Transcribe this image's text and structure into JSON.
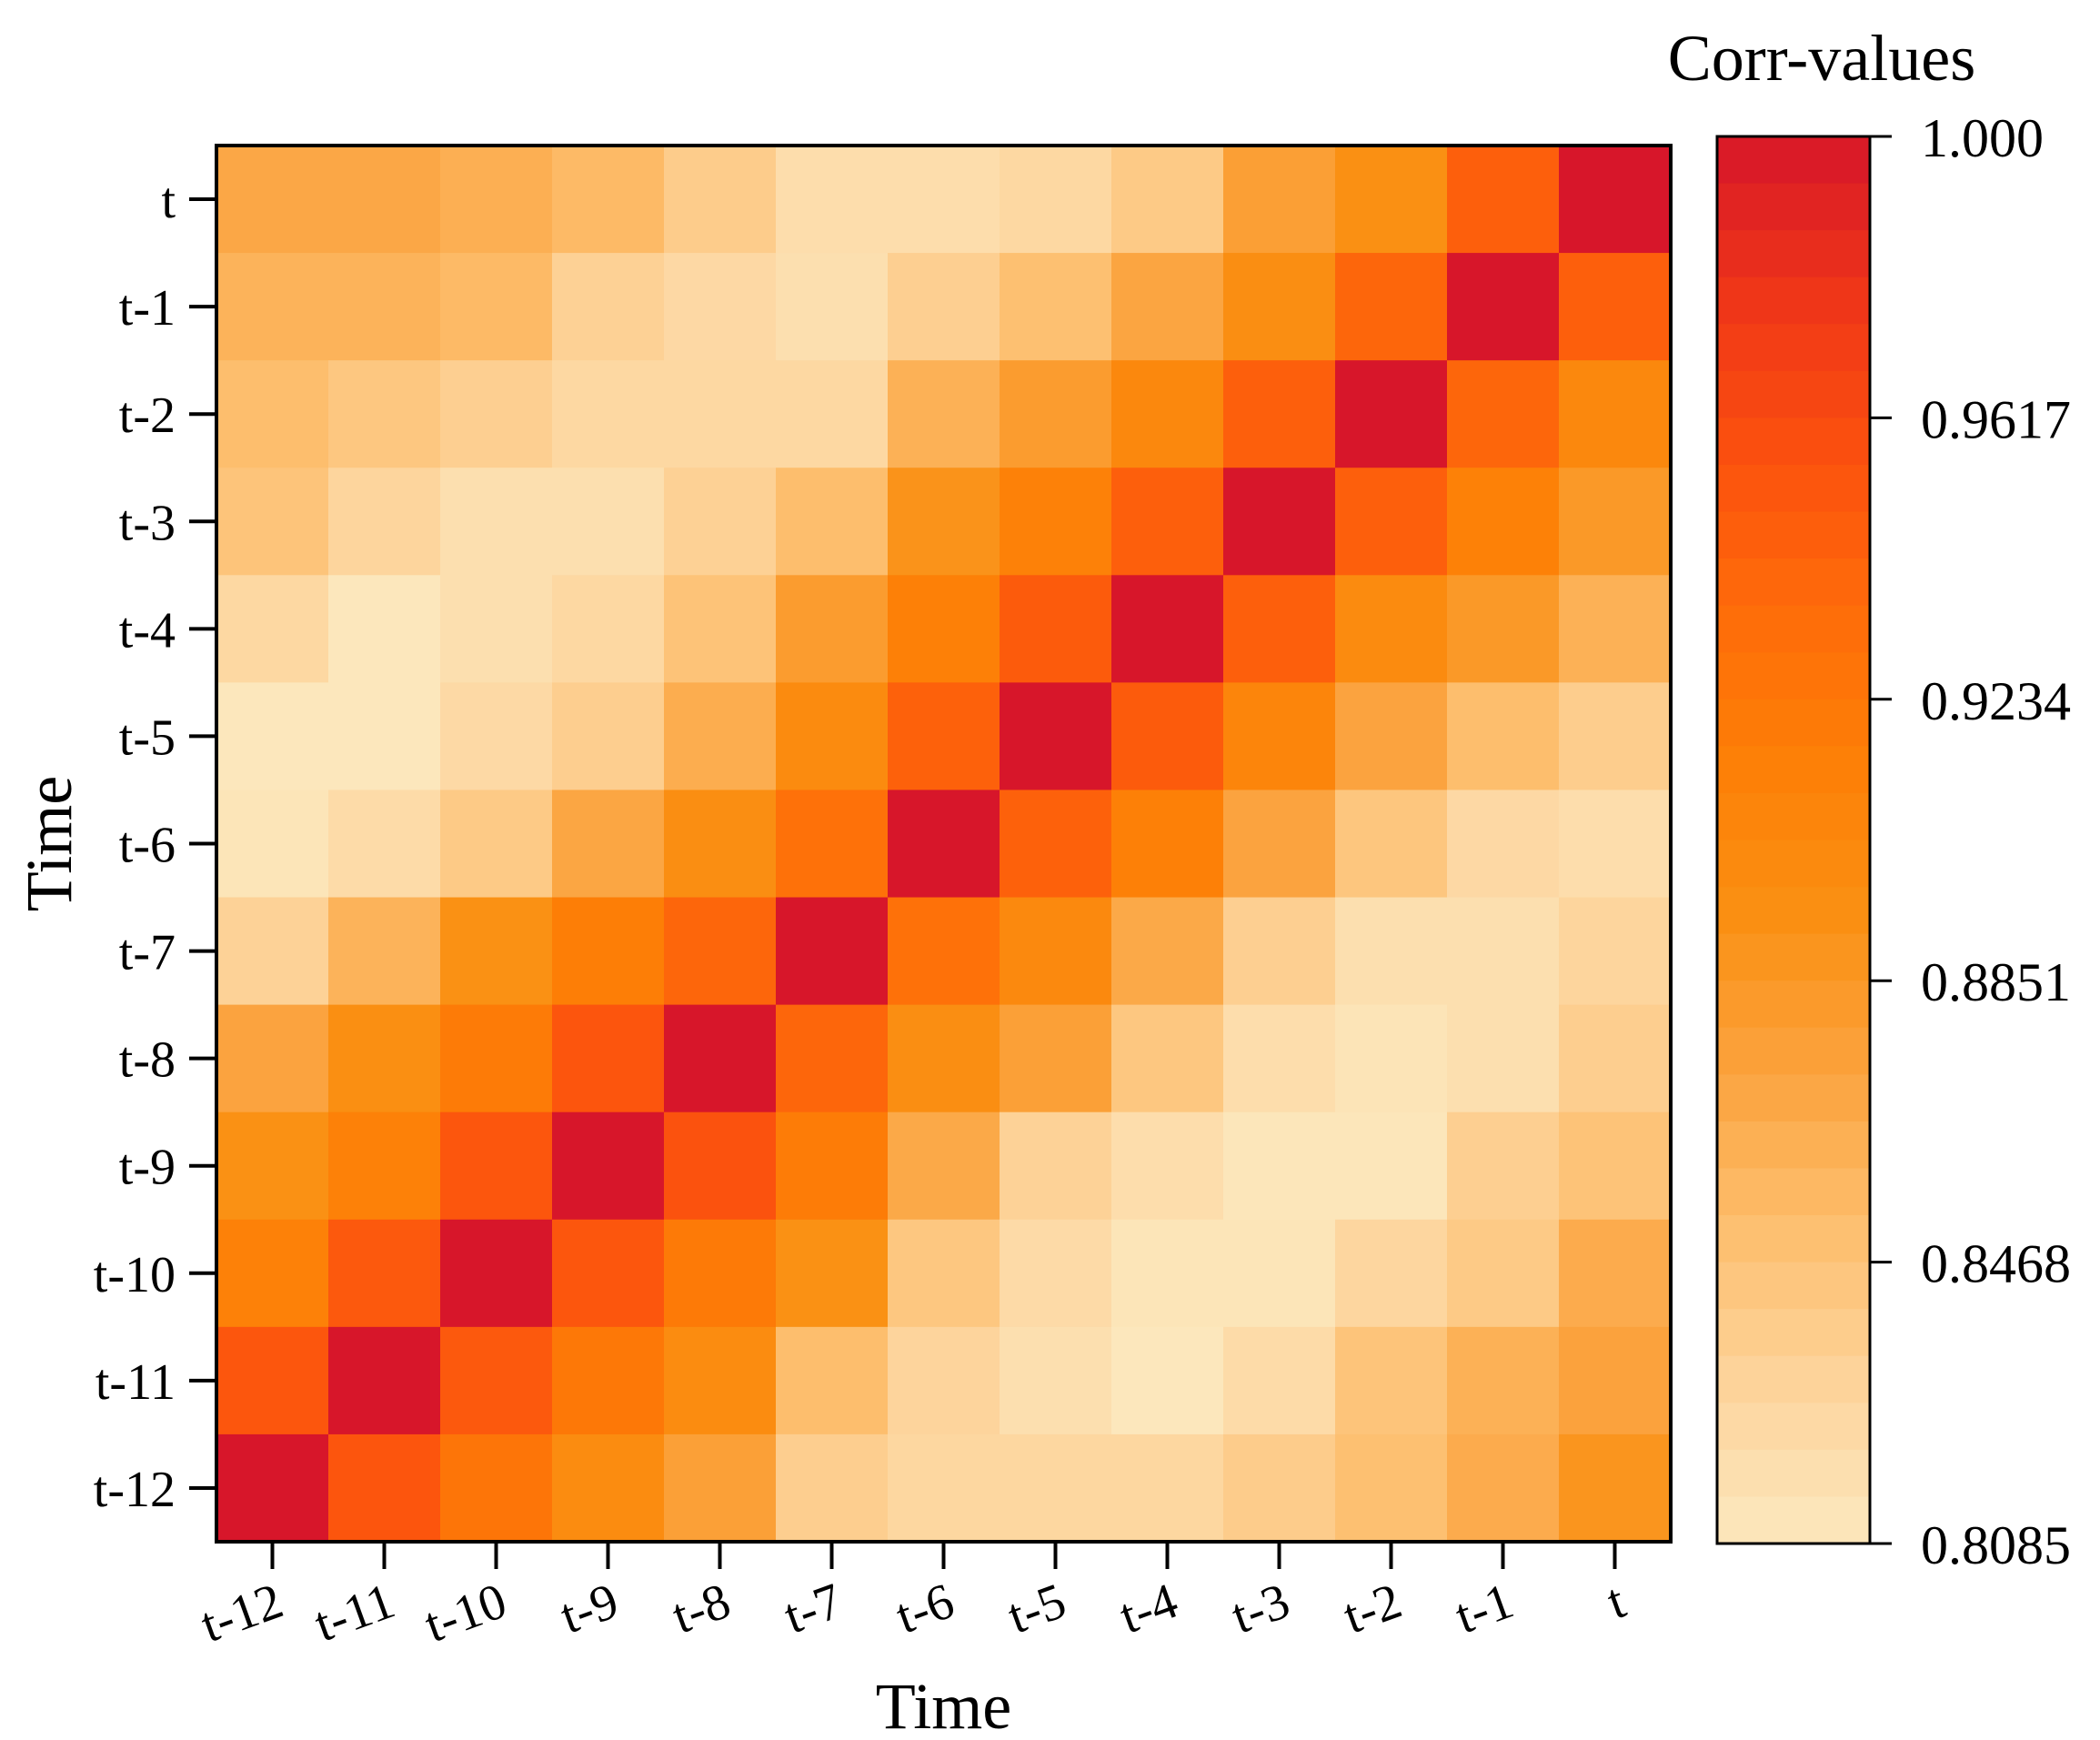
{
  "chart_data": {
    "type": "heatmap",
    "xlabel": "Time",
    "ylabel": "Time",
    "x_categories": [
      "t-12",
      "t-11",
      "t-10",
      "t-9",
      "t-8",
      "t-7",
      "t-6",
      "t-5",
      "t-4",
      "t-3",
      "t-2",
      "t-1",
      "t"
    ],
    "y_categories": [
      "t",
      "t-1",
      "t-2",
      "t-3",
      "t-4",
      "t-5",
      "t-6",
      "t-7",
      "t-8",
      "t-9",
      "t-10",
      "t-11",
      "t-12"
    ],
    "values": [
      [
        0.869,
        0.869,
        0.863,
        0.855,
        0.838,
        0.82,
        0.82,
        0.826,
        0.84,
        0.877,
        0.894,
        0.945,
        1.0
      ],
      [
        0.86,
        0.86,
        0.855,
        0.833,
        0.825,
        0.818,
        0.835,
        0.85,
        0.871,
        0.896,
        0.94,
        1.0,
        0.945
      ],
      [
        0.852,
        0.843,
        0.835,
        0.826,
        0.826,
        0.826,
        0.862,
        0.88,
        0.904,
        0.945,
        1.0,
        0.94,
        0.904
      ],
      [
        0.846,
        0.829,
        0.818,
        0.818,
        0.833,
        0.852,
        0.89,
        0.912,
        0.945,
        1.0,
        0.945,
        0.913,
        0.883
      ],
      [
        0.826,
        0.81,
        0.818,
        0.826,
        0.847,
        0.88,
        0.914,
        0.948,
        1.0,
        0.945,
        0.9,
        0.883,
        0.862
      ],
      [
        0.81,
        0.81,
        0.824,
        0.836,
        0.865,
        0.9,
        0.944,
        1.0,
        0.948,
        0.907,
        0.872,
        0.852,
        0.837
      ],
      [
        0.812,
        0.822,
        0.84,
        0.87,
        0.896,
        0.93,
        1.0,
        0.944,
        0.914,
        0.872,
        0.844,
        0.825,
        0.82
      ],
      [
        0.832,
        0.86,
        0.893,
        0.916,
        0.94,
        1.0,
        0.93,
        0.902,
        0.868,
        0.835,
        0.818,
        0.818,
        0.829
      ],
      [
        0.872,
        0.895,
        0.919,
        0.953,
        1.0,
        0.94,
        0.896,
        0.876,
        0.843,
        0.82,
        0.813,
        0.818,
        0.836
      ],
      [
        0.893,
        0.912,
        0.952,
        1.0,
        0.955,
        0.918,
        0.868,
        0.832,
        0.82,
        0.811,
        0.811,
        0.835,
        0.847
      ],
      [
        0.912,
        0.95,
        1.0,
        0.952,
        0.92,
        0.893,
        0.843,
        0.823,
        0.812,
        0.812,
        0.828,
        0.84,
        0.866
      ],
      [
        0.952,
        1.0,
        0.95,
        0.922,
        0.898,
        0.852,
        0.83,
        0.818,
        0.81,
        0.822,
        0.846,
        0.862,
        0.873
      ],
      [
        1.0,
        0.953,
        0.925,
        0.899,
        0.876,
        0.836,
        0.827,
        0.827,
        0.827,
        0.838,
        0.85,
        0.866,
        0.888
      ]
    ],
    "colorbar": {
      "title": "Corr-values",
      "min": 0.8085,
      "max": 1.0,
      "ticks": [
        "1.000",
        "0.9617",
        "0.9234",
        "0.8851",
        "0.8468",
        "0.8085"
      ]
    },
    "colormap": [
      "#fce8be",
      "#fdd49c",
      "#fdbf6f",
      "#fba33e",
      "#fa9013",
      "#fd7f06",
      "#fe6b0a",
      "#fb4f0e",
      "#ee3519",
      "#d7162a"
    ]
  }
}
